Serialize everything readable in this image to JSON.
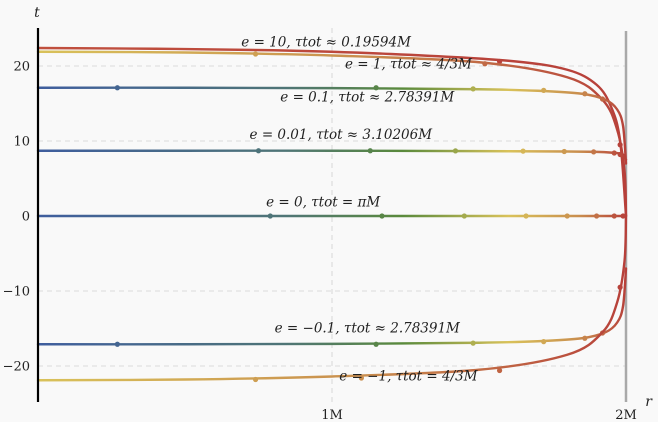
{
  "chart_data": {
    "type": "line",
    "title": "",
    "xlabel": "r",
    "ylabel": "t",
    "xlim": [
      0,
      2
    ],
    "ylim": [
      -25,
      25
    ],
    "grid": true,
    "x_ticks": [
      {
        "value": 1,
        "label": "1M"
      },
      {
        "value": 2,
        "label": "2M"
      }
    ],
    "y_ticks": [
      {
        "value": 20,
        "label": "20"
      },
      {
        "value": 10,
        "label": "10"
      },
      {
        "value": 0,
        "label": "0"
      },
      {
        "value": -10,
        "label": "−10"
      },
      {
        "value": -20,
        "label": "−20"
      }
    ],
    "horizon_line": {
      "x": 2,
      "color": "#a9a9a9"
    },
    "colors": {
      "blue": "#3f5e9e",
      "green": "#5a8a3c",
      "yellow": "#d9c25a",
      "orange": "#c98e4e",
      "red": "#b7403a",
      "axis": "#000000"
    },
    "series": [
      {
        "label": "e = 10, τtot ≈ 0.19594M",
        "label_at": [
          0.98,
          22.6
        ],
        "gradient": "warm",
        "points": [
          [
            0,
            22.4
          ],
          [
            0.4,
            22.3
          ],
          [
            0.8,
            22.1
          ],
          [
            1.2,
            21.6
          ],
          [
            1.6,
            20.7
          ],
          [
            1.8,
            19.5
          ],
          [
            1.9,
            17.5
          ],
          [
            1.95,
            14.5
          ],
          [
            1.98,
            10
          ],
          [
            2.0,
            0
          ]
        ],
        "markers": [
          [
            1.57,
            20.6
          ],
          [
            1.99,
            8.0
          ]
        ]
      },
      {
        "label": "e = 1, τtot ≈ 4/3M",
        "label_at": [
          1.26,
          19.7
        ],
        "gradient": "yellow-red",
        "points": [
          [
            0,
            21.9
          ],
          [
            0.5,
            21.8
          ],
          [
            1.0,
            21.4
          ],
          [
            1.5,
            20.5
          ],
          [
            1.8,
            18.5
          ],
          [
            1.92,
            15.5
          ],
          [
            1.97,
            11.5
          ],
          [
            1.995,
            6
          ],
          [
            2.0,
            0
          ]
        ],
        "markers": [
          [
            0.74,
            21.6
          ],
          [
            1.52,
            20.3
          ],
          [
            1.98,
            9.5
          ]
        ]
      },
      {
        "label": "e = 0.1, τtot ≈ 2.78391M",
        "label_at": [
          1.12,
          15.3
        ],
        "gradient": "full",
        "points": [
          [
            0,
            17.1
          ],
          [
            0.5,
            17.1
          ],
          [
            1.0,
            17.05
          ],
          [
            1.5,
            16.9
          ],
          [
            1.7,
            16.7
          ],
          [
            1.85,
            16.3
          ],
          [
            1.93,
            15.5
          ],
          [
            1.97,
            14.2
          ],
          [
            1.99,
            12
          ],
          [
            2.0,
            7
          ]
        ],
        "markers": [
          [
            0.27,
            17.1
          ],
          [
            1.15,
            17.1
          ],
          [
            1.48,
            16.95
          ],
          [
            1.72,
            16.75
          ],
          [
            1.86,
            16.3
          ],
          [
            1.92,
            15.6
          ]
        ]
      },
      {
        "label": "e = 0.01, τtot ≈ 3.10206M",
        "label_at": [
          1.03,
          10.3
        ],
        "gradient": "full",
        "points": [
          [
            0,
            8.7
          ],
          [
            0.5,
            8.7
          ],
          [
            1.0,
            8.7
          ],
          [
            1.5,
            8.65
          ],
          [
            1.8,
            8.6
          ],
          [
            1.9,
            8.55
          ],
          [
            1.95,
            8.45
          ],
          [
            1.98,
            8.3
          ],
          [
            2.0,
            7.5
          ]
        ],
        "markers": [
          [
            0.75,
            8.7
          ],
          [
            1.13,
            8.7
          ],
          [
            1.42,
            8.68
          ],
          [
            1.65,
            8.65
          ],
          [
            1.79,
            8.6
          ],
          [
            1.89,
            8.55
          ],
          [
            1.96,
            8.4
          ],
          [
            1.98,
            8.2
          ]
        ]
      },
      {
        "label": "e = 0, τtot = πM",
        "label_at": [
          0.97,
          1.3
        ],
        "gradient": "full",
        "points": [
          [
            0,
            0
          ],
          [
            0.5,
            0
          ],
          [
            1.0,
            0
          ],
          [
            1.5,
            0
          ],
          [
            2.0,
            0
          ]
        ],
        "markers": [
          [
            0.79,
            0
          ],
          [
            1.17,
            0
          ],
          [
            1.45,
            0
          ],
          [
            1.66,
            0
          ],
          [
            1.8,
            0
          ],
          [
            1.9,
            0
          ],
          [
            1.96,
            0
          ],
          [
            1.99,
            0
          ]
        ]
      },
      {
        "label": "e = −0.1, τtot ≈ 2.78391M",
        "label_at": [
          1.12,
          -15.5
        ],
        "gradient": "full",
        "points": [
          [
            0,
            -17.1
          ],
          [
            0.5,
            -17.1
          ],
          [
            1.0,
            -17.05
          ],
          [
            1.5,
            -16.9
          ],
          [
            1.7,
            -16.7
          ],
          [
            1.85,
            -16.3
          ],
          [
            1.93,
            -15.5
          ],
          [
            1.97,
            -14.2
          ],
          [
            1.99,
            -12
          ],
          [
            2.0,
            -7
          ]
        ],
        "markers": [
          [
            0.27,
            -17.1
          ],
          [
            1.15,
            -17.1
          ],
          [
            1.48,
            -16.95
          ],
          [
            1.72,
            -16.75
          ],
          [
            1.86,
            -16.3
          ],
          [
            1.92,
            -15.6
          ]
        ]
      },
      {
        "label": "e = −1, τtot = 4/3M",
        "label_at": [
          1.26,
          -21.9
        ],
        "gradient": "yellow-red",
        "points": [
          [
            0,
            -21.9
          ],
          [
            0.5,
            -21.8
          ],
          [
            1.0,
            -21.4
          ],
          [
            1.5,
            -20.5
          ],
          [
            1.8,
            -18.5
          ],
          [
            1.92,
            -15.5
          ],
          [
            1.97,
            -11.5
          ],
          [
            1.995,
            -6
          ],
          [
            2.0,
            0
          ]
        ],
        "markers": [
          [
            0.74,
            -21.8
          ],
          [
            1.1,
            -21.6
          ],
          [
            1.57,
            -20.6
          ],
          [
            1.98,
            -9.5
          ]
        ]
      }
    ]
  }
}
